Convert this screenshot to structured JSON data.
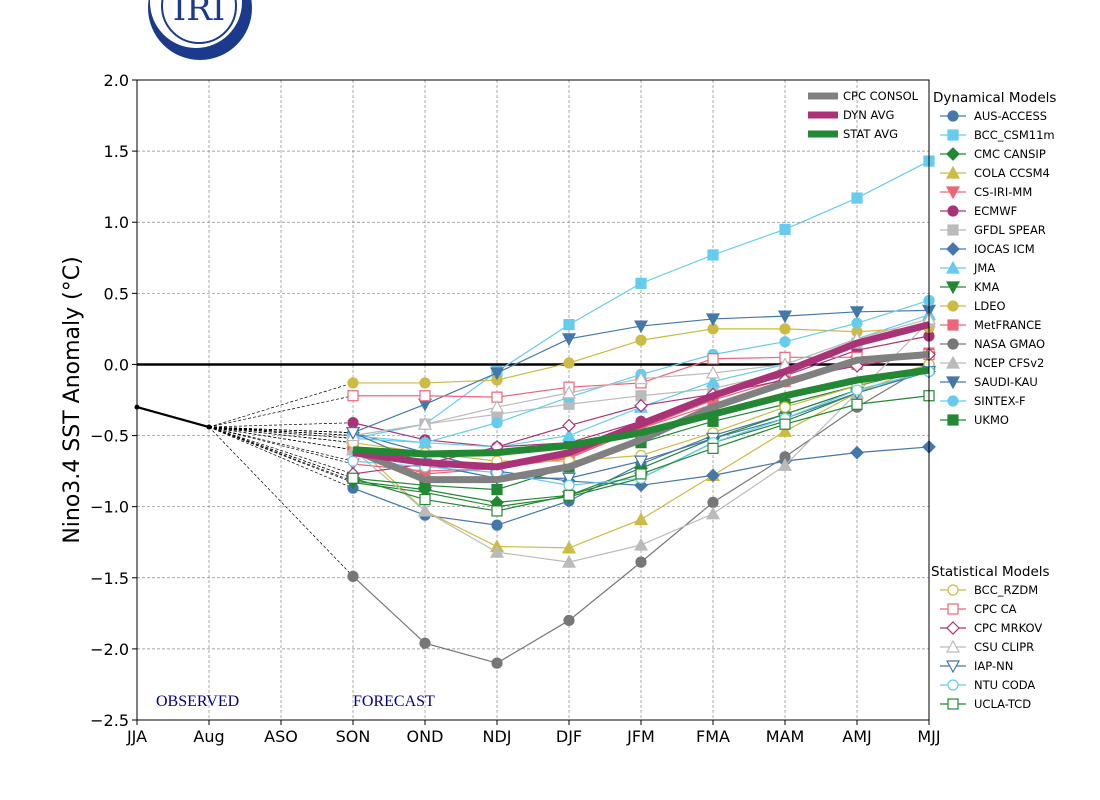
{
  "logo_text": "IRI",
  "chart_data": {
    "type": "line",
    "ylabel": "Nino3.4 SST Anomaly (°C)",
    "ylim": [
      -2.5,
      2.0
    ],
    "yticks": [
      "2.0",
      "1.5",
      "1.0",
      "0.5",
      "0.0",
      "−0.5",
      "−1.0",
      "−1.5",
      "−2.0",
      "−2.5"
    ],
    "ytick_values": [
      2.0,
      1.5,
      1.0,
      0.5,
      0.0,
      -0.5,
      -1.0,
      -1.5,
      -2.0,
      -2.5
    ],
    "categories": [
      "JJA",
      "Aug",
      "ASO",
      "SON",
      "OND",
      "NDJ",
      "DJF",
      "JFM",
      "FMA",
      "MAM",
      "AMJ",
      "MJJ"
    ],
    "grid": true,
    "annotations": {
      "observed": "OBSERVED",
      "forecast": "FORECAST"
    },
    "observed": {
      "categories": [
        "JJA",
        "Aug"
      ],
      "values": [
        -0.3,
        -0.44
      ]
    },
    "forecast_categories": [
      "SON",
      "OND",
      "NDJ",
      "DJF",
      "JFM",
      "FMA",
      "MAM",
      "AMJ",
      "MJJ"
    ],
    "averages": [
      {
        "name": "CPC CONSOL",
        "color": "#808080",
        "values": [
          -0.6,
          -0.81,
          -0.81,
          -0.72,
          -0.53,
          -0.3,
          -0.13,
          0.03,
          0.07
        ]
      },
      {
        "name": "DYN AVG",
        "color": "#aa3377",
        "values": [
          -0.62,
          -0.69,
          -0.72,
          -0.62,
          -0.42,
          -0.22,
          -0.05,
          0.15,
          0.28
        ]
      },
      {
        "name": "STAT AVG",
        "color": "#228833",
        "values": [
          -0.6,
          -0.63,
          -0.62,
          -0.57,
          -0.48,
          -0.35,
          -0.22,
          -0.11,
          -0.04
        ]
      }
    ],
    "dynamical_title": "Dynamical Models",
    "dynamical": [
      {
        "name": "AUS-ACCESS",
        "color": "#4477aa",
        "marker": "circle",
        "filled": true,
        "values": [
          -0.87,
          -1.06,
          -1.13,
          -0.96,
          -0.7,
          -0.5,
          -0.35,
          -0.18,
          -0.05
        ]
      },
      {
        "name": "BCC_CSM11m",
        "color": "#66ccee",
        "marker": "square",
        "filled": true,
        "values": [
          -0.52,
          -0.42,
          -0.05,
          0.28,
          0.57,
          0.77,
          0.95,
          1.17,
          1.43
        ]
      },
      {
        "name": "CMC CANSIP",
        "color": "#228833",
        "marker": "diamond",
        "filled": true,
        "values": [
          -0.82,
          -0.88,
          -0.97,
          -0.92,
          -0.73,
          -0.52,
          -0.35,
          -0.18,
          -0.05
        ]
      },
      {
        "name": "COLA CCSM4",
        "color": "#ccbb44",
        "marker": "triangle-up",
        "filled": true,
        "values": [
          -0.55,
          -1.03,
          -1.28,
          -1.29,
          -1.09,
          -0.78,
          -0.47,
          -0.2,
          0.0
        ]
      },
      {
        "name": "CS-IRI-MM",
        "color": "#ee6677",
        "marker": "triangle-down",
        "filled": true,
        "values": [
          -0.7,
          -0.75,
          -0.73,
          -0.66,
          -0.45,
          -0.25,
          -0.1,
          0.02,
          0.05
        ]
      },
      {
        "name": "ECMWF",
        "color": "#aa3377",
        "marker": "circle",
        "filled": true,
        "values": [
          -0.41,
          -0.53,
          -0.58,
          -0.55,
          -0.4,
          -0.22,
          -0.08,
          0.1,
          0.2
        ]
      },
      {
        "name": "GFDL SPEAR",
        "color": "#bbbbbb",
        "marker": "square",
        "filled": true,
        "values": [
          -0.5,
          -0.42,
          -0.35,
          -0.28,
          -0.22,
          -0.17,
          -0.05,
          0.15,
          0.3
        ]
      },
      {
        "name": "IOCAS ICM",
        "color": "#4477aa",
        "marker": "diamond",
        "filled": true,
        "values": [
          -0.48,
          -0.62,
          -0.75,
          -0.82,
          -0.85,
          -0.78,
          -0.68,
          -0.62,
          -0.58
        ]
      },
      {
        "name": "JMA",
        "color": "#66ccee",
        "marker": "triangle-up",
        "filled": true,
        "values": [
          -0.52,
          -0.55,
          -0.58,
          -0.5,
          -0.3,
          -0.12,
          0.0,
          0.18,
          0.35
        ]
      },
      {
        "name": "KMA",
        "color": "#228833",
        "marker": "triangle-down",
        "filled": true,
        "values": [
          -0.83,
          -0.9,
          -1.0,
          -0.93,
          -0.8,
          -0.55,
          -0.4,
          -0.2,
          -0.05
        ]
      },
      {
        "name": "LDEO",
        "color": "#ccbb44",
        "marker": "circle",
        "filled": true,
        "values": [
          -0.13,
          -0.13,
          -0.11,
          0.01,
          0.17,
          0.25,
          0.25,
          0.23,
          0.26
        ]
      },
      {
        "name": "MetFRANCE",
        "color": "#ee6677",
        "marker": "square",
        "filled": true,
        "values": [
          -0.6,
          -0.77,
          -0.73,
          -0.65,
          -0.45,
          -0.28,
          -0.12,
          0.0,
          0.08
        ]
      },
      {
        "name": "NASA GMAO",
        "color": "#777777",
        "marker": "circle",
        "filled": true,
        "values": [
          -1.49,
          -1.96,
          -2.1,
          -1.8,
          -1.39,
          -0.97,
          -0.65,
          -0.3,
          0.0
        ]
      },
      {
        "name": "NCEP CFSv2",
        "color": "#bbbbbb",
        "marker": "triangle-up",
        "filled": true,
        "values": [
          -0.6,
          -1.03,
          -1.32,
          -1.39,
          -1.27,
          -1.05,
          -0.71,
          -0.2,
          0.3
        ]
      },
      {
        "name": "SAUDI-KAU",
        "color": "#4477aa",
        "marker": "triangle-down",
        "filled": true,
        "values": [
          -0.48,
          -0.28,
          -0.06,
          0.18,
          0.27,
          0.32,
          0.34,
          0.37,
          0.38
        ]
      },
      {
        "name": "SINTEX-F",
        "color": "#66ccee",
        "marker": "circle",
        "filled": true,
        "values": [
          -0.5,
          -0.55,
          -0.41,
          -0.23,
          -0.07,
          0.07,
          0.16,
          0.29,
          0.45
        ]
      },
      {
        "name": "UKMO",
        "color": "#228833",
        "marker": "square",
        "filled": true,
        "values": [
          -0.8,
          -0.85,
          -0.88,
          -0.72,
          -0.55,
          -0.4,
          -0.28,
          -0.15,
          -0.03
        ]
      }
    ],
    "statistical_title": "Statistical Models",
    "statistical": [
      {
        "name": "BCC_RZDM",
        "color": "#ccbb44",
        "marker": "circle",
        "filled": false,
        "values": [
          -0.55,
          -0.62,
          -0.68,
          -0.68,
          -0.64,
          -0.48,
          -0.3,
          -0.15,
          0.0
        ]
      },
      {
        "name": "CPC CA",
        "color": "#ee6677",
        "marker": "square",
        "filled": false,
        "values": [
          -0.22,
          -0.22,
          -0.23,
          -0.16,
          -0.13,
          0.04,
          0.05,
          0.05,
          0.07
        ]
      },
      {
        "name": "CPC MRKOV",
        "color": "#aa3377",
        "marker": "diamond",
        "filled": false,
        "values": [
          -0.77,
          -0.7,
          -0.58,
          -0.43,
          -0.29,
          -0.21,
          -0.11,
          -0.01,
          0.07
        ]
      },
      {
        "name": "CSU CLIPR",
        "color": "#bbbbbb",
        "marker": "triangle-up",
        "filled": false,
        "values": [
          -0.5,
          -0.42,
          -0.3,
          -0.2,
          -0.1,
          -0.06,
          0.0,
          0.18,
          0.32
        ]
      },
      {
        "name": "IAP-NN",
        "color": "#4477aa",
        "marker": "triangle-down",
        "filled": false,
        "values": [
          -0.48,
          -0.7,
          -0.8,
          -0.8,
          -0.68,
          -0.52,
          -0.38,
          -0.2,
          -0.05
        ]
      },
      {
        "name": "NTU CODA",
        "color": "#66ccee",
        "marker": "circle",
        "filled": false,
        "values": [
          -0.68,
          -0.72,
          -0.76,
          -0.85,
          -0.8,
          -0.55,
          -0.38,
          -0.18,
          -0.05
        ]
      },
      {
        "name": "UCLA-TCD",
        "color": "#228833",
        "marker": "square",
        "filled": false,
        "values": [
          -0.8,
          -0.95,
          -1.03,
          -0.92,
          -0.77,
          -0.59,
          -0.42,
          -0.28,
          -0.22
        ]
      }
    ]
  }
}
